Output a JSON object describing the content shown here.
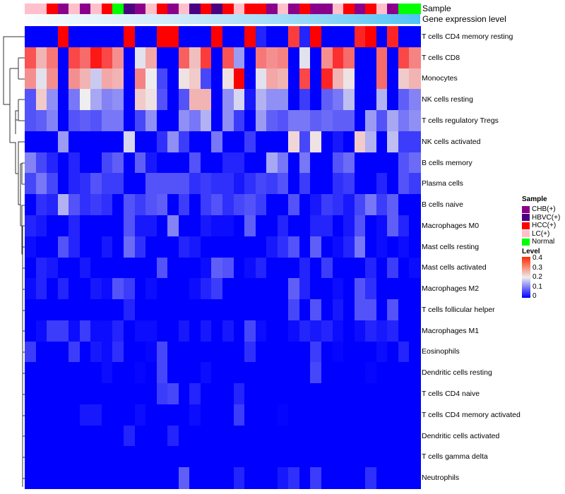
{
  "chart_data": {
    "type": "heatmap",
    "title": "",
    "annotation_labels": {
      "sample": "Sample",
      "gene_expression": "Gene expression level"
    },
    "rows": [
      "T cells CD4 memory resting",
      "T cells CD8",
      "Monocytes",
      "NK cells resting",
      "T cells regulatory  Tregs",
      "NK cells activated",
      "B cells memory",
      "Plasma cells",
      "B cells naive",
      "Macrophages M0",
      "Mast cells resting",
      "Mast cells activated",
      "Macrophages M2",
      "T cells follicular helper",
      "Macrophages M1",
      "Eosinophils",
      "Dendritic cells resting",
      "T cells CD4 naive",
      "T cells CD4 memory activated",
      "Dendritic cells activated",
      "T cells gamma delta",
      "Neutrophils"
    ],
    "column_samples": [
      "LC(+)",
      "LC(+)",
      "HCC(+)",
      "CHB(+)",
      "LC(+)",
      "CHB(+)",
      "LC(+)",
      "HCC(+)",
      "Normal",
      "HBVC(+)",
      "CHB(+)",
      "LC(+)",
      "HCC(+)",
      "CHB(+)",
      "LC(+)",
      "HBVC(+)",
      "HCC(+)",
      "HBVC(+)",
      "HCC(+)",
      "LC(+)",
      "HCC(+)",
      "HCC(+)",
      "CHB(+)",
      "LC(+)",
      "CHB(+)",
      "HCC(+)",
      "CHB(+)",
      "CHB(+)",
      "LC(+)",
      "HCC(+)",
      "CHB(+)",
      "HCC(+)",
      "LC(+)",
      "CHB(+)",
      "Normal",
      "Normal"
    ],
    "values": [
      [
        0,
        0,
        0,
        0.4,
        0,
        0,
        0,
        0,
        0,
        0.4,
        0,
        0,
        0.4,
        0.4,
        0,
        0,
        0,
        0.4,
        0,
        0,
        0.4,
        0.03,
        0,
        0,
        0.35,
        0.03,
        0.4,
        0,
        0,
        0,
        0.37,
        0.4,
        0,
        0.37,
        0,
        0
      ],
      [
        0.33,
        0.25,
        0.3,
        0,
        0.34,
        0.31,
        0.38,
        0.34,
        0.28,
        0,
        0.19,
        0.26,
        0,
        0,
        0.32,
        0.24,
        0.35,
        0,
        0.33,
        0.13,
        0,
        0.3,
        0.28,
        0.29,
        0,
        0.19,
        0,
        0.28,
        0.36,
        0.31,
        0,
        0,
        0.31,
        0,
        0.34,
        0.29
      ],
      [
        0.28,
        0.19,
        0.28,
        0,
        0.28,
        0.25,
        0.17,
        0.26,
        0.25,
        0,
        0.29,
        0.2,
        0.06,
        0,
        0.21,
        0.23,
        0.06,
        0,
        0.21,
        0.4,
        0,
        0.19,
        0.26,
        0.25,
        0,
        0.34,
        0,
        0.37,
        0.25,
        0.21,
        0,
        0,
        0.31,
        0,
        0.23,
        0.25
      ],
      [
        0.07,
        0.23,
        0.12,
        0,
        0.1,
        0.2,
        0.14,
        0.11,
        0.12,
        0,
        0.23,
        0.21,
        0.07,
        0,
        0.07,
        0.25,
        0.25,
        0,
        0.12,
        0.18,
        0.02,
        0.15,
        0.12,
        0.12,
        0,
        0.05,
        0,
        0.08,
        0.1,
        0.16,
        0,
        0,
        0.15,
        0,
        0.08,
        0.11
      ],
      [
        0.07,
        0.08,
        0.11,
        0,
        0.07,
        0.08,
        0.07,
        0.1,
        0.1,
        0,
        0.06,
        0.12,
        0,
        0,
        0.12,
        0.1,
        0.15,
        0,
        0.12,
        0.05,
        0,
        0.13,
        0.08,
        0.07,
        0.1,
        0.1,
        0.08,
        0.09,
        0.08,
        0.08,
        0,
        0.13,
        0.07,
        0.14,
        0.1,
        0.12
      ],
      [
        0,
        0,
        0,
        0.13,
        0,
        0,
        0,
        0,
        0,
        0.18,
        0,
        0,
        0.04,
        0.12,
        0.05,
        0,
        0,
        0.1,
        0,
        0,
        0.05,
        0,
        0,
        0,
        0.22,
        0.06,
        0.21,
        0,
        0.02,
        0,
        0.23,
        0.15,
        0,
        0.16,
        0.05,
        0.05
      ],
      [
        0.11,
        0.06,
        0.03,
        0,
        0.03,
        0,
        0,
        0.06,
        0.08,
        0,
        0.08,
        0.02,
        0,
        0,
        0,
        0.07,
        0,
        0,
        0.03,
        0.03,
        0,
        0,
        0.14,
        0.1,
        0,
        0.1,
        0,
        0,
        0.07,
        0.09,
        0,
        0,
        0,
        0,
        0.07,
        0.09
      ],
      [
        0.06,
        0.1,
        0.06,
        0,
        0.03,
        0.04,
        0.07,
        0.05,
        0.05,
        0,
        0,
        0.07,
        0.07,
        0.07,
        0.07,
        0.04,
        0.05,
        0.04,
        0.04,
        0.02,
        0.04,
        0.06,
        0.05,
        0.07,
        0,
        0.05,
        0,
        0,
        0.04,
        0.05,
        0,
        0,
        0.03,
        0,
        0.07,
        0.05
      ],
      [
        0,
        0.04,
        0.03,
        0.15,
        0.07,
        0.04,
        0.05,
        0.04,
        0,
        0.07,
        0.05,
        0.07,
        0.08,
        0,
        0.05,
        0,
        0.05,
        0.07,
        0.04,
        0.06,
        0.07,
        0.05,
        0,
        0,
        0.07,
        0,
        0.02,
        0.05,
        0.04,
        0.02,
        0.06,
        0.1,
        0.05,
        0.08,
        0,
        0
      ],
      [
        0.03,
        0.02,
        0,
        0,
        0.03,
        0,
        0,
        0,
        0,
        0.07,
        0.02,
        0.02,
        0,
        0.11,
        0,
        0,
        0.02,
        0.01,
        0.01,
        0,
        0.08,
        0,
        0,
        0.03,
        0,
        0,
        0.03,
        0.03,
        0,
        0.02,
        0.07,
        0,
        0.01,
        0.08,
        0.03,
        0
      ],
      [
        0.01,
        0,
        0,
        0.07,
        0.03,
        0,
        0,
        0.02,
        0,
        0.09,
        0.04,
        0,
        0,
        0,
        0.03,
        0.02,
        0,
        0,
        0,
        0,
        0,
        0,
        0.02,
        0.04,
        0.07,
        0,
        0.08,
        0,
        0.01,
        0.03,
        0.1,
        0,
        0.01,
        0,
        0.01,
        0
      ],
      [
        0,
        0.03,
        0.02,
        0,
        0,
        0.02,
        0,
        0,
        0,
        0,
        0,
        0,
        0.07,
        0,
        0,
        0,
        0.01,
        0.08,
        0.07,
        0,
        0.01,
        0.03,
        0,
        0,
        0,
        0.03,
        0,
        0.05,
        0,
        0,
        0,
        0.03,
        0,
        0.05,
        0,
        0.01
      ],
      [
        0.01,
        0.03,
        0,
        0.03,
        0,
        0,
        0.02,
        0.01,
        0.07,
        0.05,
        0,
        0.01,
        0,
        0,
        0,
        0.01,
        0.03,
        0.05,
        0,
        0,
        0,
        0,
        0,
        0,
        0.08,
        0.03,
        0,
        0,
        0.01,
        0,
        0.07,
        0.04,
        0,
        0,
        0,
        0
      ],
      [
        0,
        0,
        0,
        0,
        0,
        0,
        0,
        0,
        0,
        0.03,
        0,
        0,
        0,
        0,
        0,
        0,
        0,
        0,
        0,
        0,
        0,
        0,
        0,
        0,
        0.06,
        0,
        0.07,
        0,
        0.02,
        0,
        0.07,
        0.07,
        0,
        0.07,
        0,
        0
      ],
      [
        0,
        0.01,
        0.05,
        0.05,
        0.01,
        0.05,
        0.01,
        0.01,
        0.03,
        0,
        0.01,
        0.01,
        0,
        0,
        0.02,
        0,
        0.02,
        0,
        0.02,
        0,
        0.06,
        0.01,
        0,
        0,
        0.01,
        0.03,
        0.02,
        0.03,
        0.01,
        0,
        0.01,
        0.03,
        0.02,
        0.03,
        0,
        0
      ],
      [
        0.05,
        0,
        0,
        0,
        0.05,
        0,
        0.02,
        0.01,
        0.04,
        0,
        0,
        0.005,
        0.06,
        0,
        0,
        0,
        0,
        0,
        0,
        0,
        0.04,
        0,
        0,
        0,
        0,
        0,
        0.05,
        0,
        0.005,
        0,
        0,
        0,
        0.01,
        0,
        0.03,
        0
      ],
      [
        0,
        0,
        0,
        0,
        0,
        0,
        0,
        0.01,
        0,
        0,
        0.005,
        0,
        0.06,
        0,
        0,
        0,
        0.01,
        0,
        0,
        0,
        0,
        0,
        0,
        0,
        0,
        0,
        0.06,
        0,
        0,
        0,
        0,
        0.005,
        0,
        0,
        0,
        0
      ],
      [
        0,
        0,
        0,
        0,
        0,
        0,
        0,
        0,
        0,
        0,
        0,
        0,
        0.05,
        0.06,
        0,
        0.03,
        0,
        0,
        0,
        0.03,
        0,
        0,
        0,
        0,
        0,
        0,
        0,
        0,
        0,
        0,
        0,
        0,
        0,
        0,
        0,
        0
      ],
      [
        0,
        0,
        0,
        0,
        0,
        0.02,
        0.02,
        0,
        0,
        0,
        0.01,
        0,
        0,
        0,
        0,
        0.01,
        0,
        0,
        0,
        0.05,
        0,
        0,
        0,
        0.003,
        0,
        0,
        0,
        0,
        0,
        0,
        0,
        0,
        0,
        0,
        0,
        0
      ],
      [
        0,
        0,
        0,
        0,
        0,
        0,
        0,
        0,
        0,
        0.03,
        0,
        0,
        0,
        0.03,
        0,
        0,
        0,
        0,
        0,
        0,
        0,
        0,
        0,
        0,
        0,
        0,
        0,
        0,
        0,
        0,
        0,
        0,
        0,
        0,
        0,
        0
      ],
      [
        0,
        0,
        0,
        0,
        0,
        0,
        0,
        0,
        0,
        0,
        0,
        0,
        0,
        0,
        0,
        0,
        0,
        0,
        0,
        0,
        0,
        0,
        0,
        0,
        0,
        0,
        0,
        0,
        0,
        0,
        0,
        0,
        0,
        0,
        0,
        0
      ],
      [
        0,
        0,
        0,
        0,
        0,
        0,
        0,
        0,
        0,
        0,
        0,
        0,
        0,
        0,
        0.08,
        0,
        0,
        0,
        0,
        0.03,
        0,
        0,
        0,
        0.02,
        0.04,
        0,
        0.05,
        0,
        0,
        0,
        0,
        0.04,
        0,
        0,
        0,
        0
      ]
    ],
    "color_scale": {
      "min": 0,
      "mid": 0.2,
      "max": 0.4,
      "low": "#0000ff",
      "midcolor": "#eeeeee",
      "high": "#ff0000"
    },
    "legend": {
      "sample_title": "Sample",
      "sample_items": [
        {
          "label": "CHB(+)",
          "color": "#8b008b"
        },
        {
          "label": "HBVC(+)",
          "color": "#4b0082"
        },
        {
          "label": "HCC(+)",
          "color": "#ff0000"
        },
        {
          "label": "LC(+)",
          "color": "#ffc0cb"
        },
        {
          "label": "Normal",
          "color": "#00ff00"
        }
      ],
      "level_title": "Level",
      "level_ticks": [
        "0.4",
        "0.3",
        "0.2",
        "0.1",
        "0"
      ],
      "placement": "right"
    }
  }
}
